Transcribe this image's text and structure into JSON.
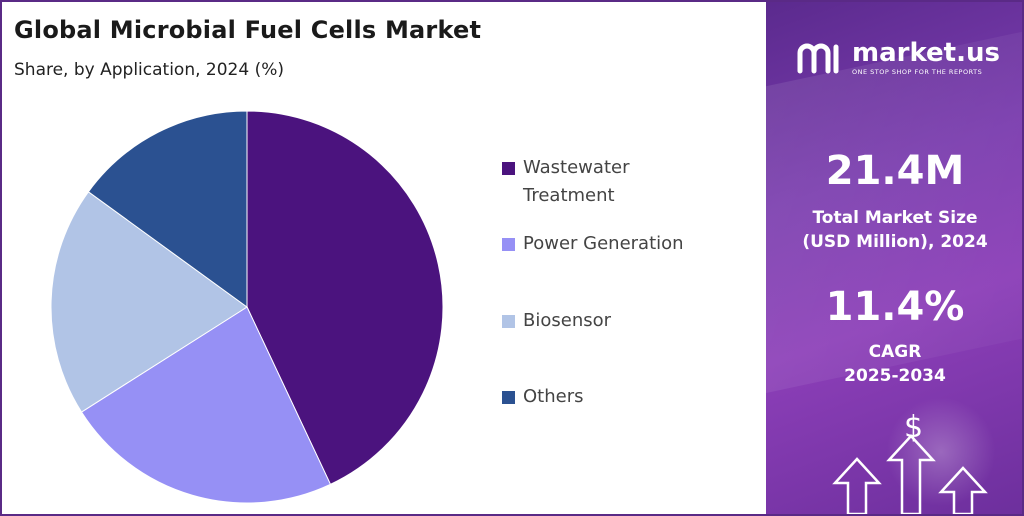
{
  "chart_data": {
    "type": "pie",
    "title": "Global Microbial Fuel Cells Market",
    "subtitle": "Share, by Application, 2024 (%)",
    "categories": [
      "Wastewater Treatment",
      "Power Generation",
      "Biosensor",
      "Others"
    ],
    "values": [
      43,
      23,
      19,
      15
    ],
    "legend_labels": [
      [
        "Wastewater",
        "Treatment"
      ],
      [
        "Power Generation"
      ],
      [
        "Biosensor"
      ],
      [
        "Others"
      ]
    ],
    "colors": [
      "#4b137e",
      "#9690f5",
      "#b1c4e6",
      "#2b5191"
    ],
    "legend_position": "right"
  },
  "sidebar": {
    "brand": "market.us",
    "tagline": "ONE STOP SHOP FOR THE REPORTS",
    "market_size_value": "21.4M",
    "market_size_label_1": "Total Market Size",
    "market_size_label_2": "(USD Million), 2024",
    "cagr_value": "11.4%",
    "cagr_label_1": "CAGR",
    "cagr_label_2": "2025-2034",
    "dollar_symbol": "$"
  }
}
